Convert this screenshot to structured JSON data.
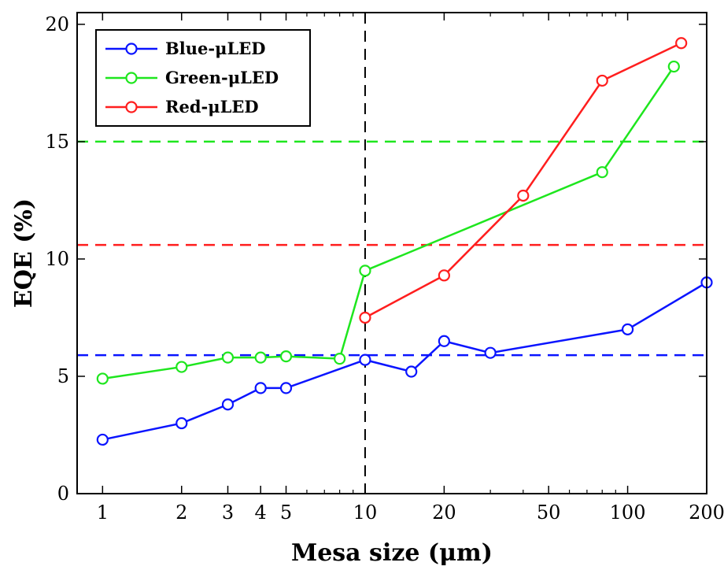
{
  "chart_data": {
    "type": "line",
    "xlabel": "Mesa size (μm)",
    "ylabel": "EQE (%)",
    "xscale": "log",
    "xlim": [
      0.8,
      200
    ],
    "ylim": [
      0,
      20.5
    ],
    "xticks": [
      1,
      2,
      3,
      4,
      5,
      10,
      20,
      50,
      100,
      200
    ],
    "xtick_labels": [
      "1",
      "2",
      "3",
      "4",
      "5",
      "10",
      "20",
      "50",
      "100",
      "200"
    ],
    "yticks": [
      0,
      5,
      10,
      15,
      20
    ],
    "ytick_labels": [
      "0",
      "5",
      "10",
      "15",
      "20"
    ],
    "grid": false,
    "legend_position": "top-left",
    "series": [
      {
        "name": "Blue-μLED",
        "color": "#0a14ff",
        "x": [
          1,
          2,
          3,
          4,
          5,
          10,
          15,
          20,
          30,
          100,
          200
        ],
        "y": [
          2.3,
          3.0,
          3.8,
          4.5,
          4.5,
          5.7,
          5.2,
          6.5,
          6.0,
          7.0,
          9.0
        ]
      },
      {
        "name": "Green-μLED",
        "color": "#1ee61e",
        "x": [
          1,
          2,
          3,
          4,
          5,
          8,
          10,
          80,
          150
        ],
        "y": [
          4.9,
          5.4,
          5.8,
          5.8,
          5.85,
          5.75,
          9.5,
          13.7,
          18.2
        ]
      },
      {
        "name": "Red-μLED",
        "color": "#ff1e1e",
        "x": [
          10,
          20,
          40,
          80,
          160
        ],
        "y": [
          7.5,
          9.3,
          12.7,
          17.6,
          19.2
        ]
      }
    ],
    "reference_lines": [
      {
        "orientation": "horizontal",
        "value": 15.0,
        "color": "#1ee61e",
        "style": "dashed"
      },
      {
        "orientation": "horizontal",
        "value": 10.6,
        "color": "#ff1e1e",
        "style": "dashed"
      },
      {
        "orientation": "horizontal",
        "value": 5.9,
        "color": "#0a14ff",
        "style": "dashed"
      },
      {
        "orientation": "vertical",
        "value": 10,
        "color": "#000000",
        "style": "dashed"
      }
    ]
  }
}
